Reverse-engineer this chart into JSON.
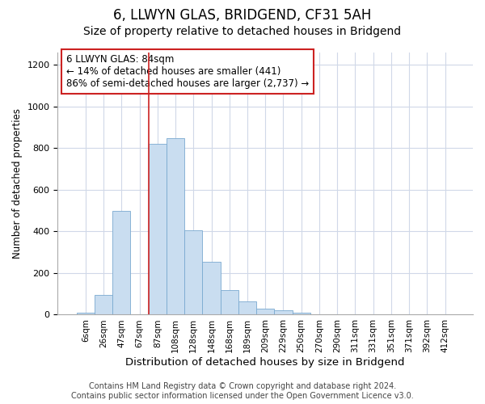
{
  "title_line1": "6, LLWYN GLAS, BRIDGEND, CF31 5AH",
  "title_line2": "Size of property relative to detached houses in Bridgend",
  "xlabel": "Distribution of detached houses by size in Bridgend",
  "ylabel": "Number of detached properties",
  "footer_line1": "Contains HM Land Registry data © Crown copyright and database right 2024.",
  "footer_line2": "Contains public sector information licensed under the Open Government Licence v3.0.",
  "bar_labels": [
    "6sqm",
    "26sqm",
    "47sqm",
    "67sqm",
    "87sqm",
    "108sqm",
    "128sqm",
    "148sqm",
    "168sqm",
    "189sqm",
    "209sqm",
    "229sqm",
    "250sqm",
    "270sqm",
    "290sqm",
    "311sqm",
    "331sqm",
    "351sqm",
    "371sqm",
    "392sqm",
    "412sqm"
  ],
  "bar_values": [
    10,
    95,
    500,
    0,
    820,
    850,
    405,
    255,
    120,
    65,
    30,
    20,
    10,
    0,
    0,
    0,
    0,
    0,
    0,
    0,
    0
  ],
  "bar_color": "#c9ddf0",
  "bar_edgecolor": "#7aaad0",
  "annotation_line1": "6 LLWYN GLAS: 84sqm",
  "annotation_line2": "← 14% of detached houses are smaller (441)",
  "annotation_line3": "86% of semi-detached houses are larger (2,737) →",
  "vline_x": 4.0,
  "vline_color": "#cc2222",
  "ylim": [
    0,
    1260
  ],
  "yticks": [
    0,
    200,
    400,
    600,
    800,
    1000,
    1200
  ],
  "bg_color": "#ffffff",
  "grid_color": "#d0d8e8",
  "title1_fontsize": 12,
  "title2_fontsize": 10,
  "annotation_fontsize": 8.5,
  "footer_fontsize": 7,
  "xlabel_fontsize": 9.5,
  "ylabel_fontsize": 8.5,
  "xtick_fontsize": 7.5
}
